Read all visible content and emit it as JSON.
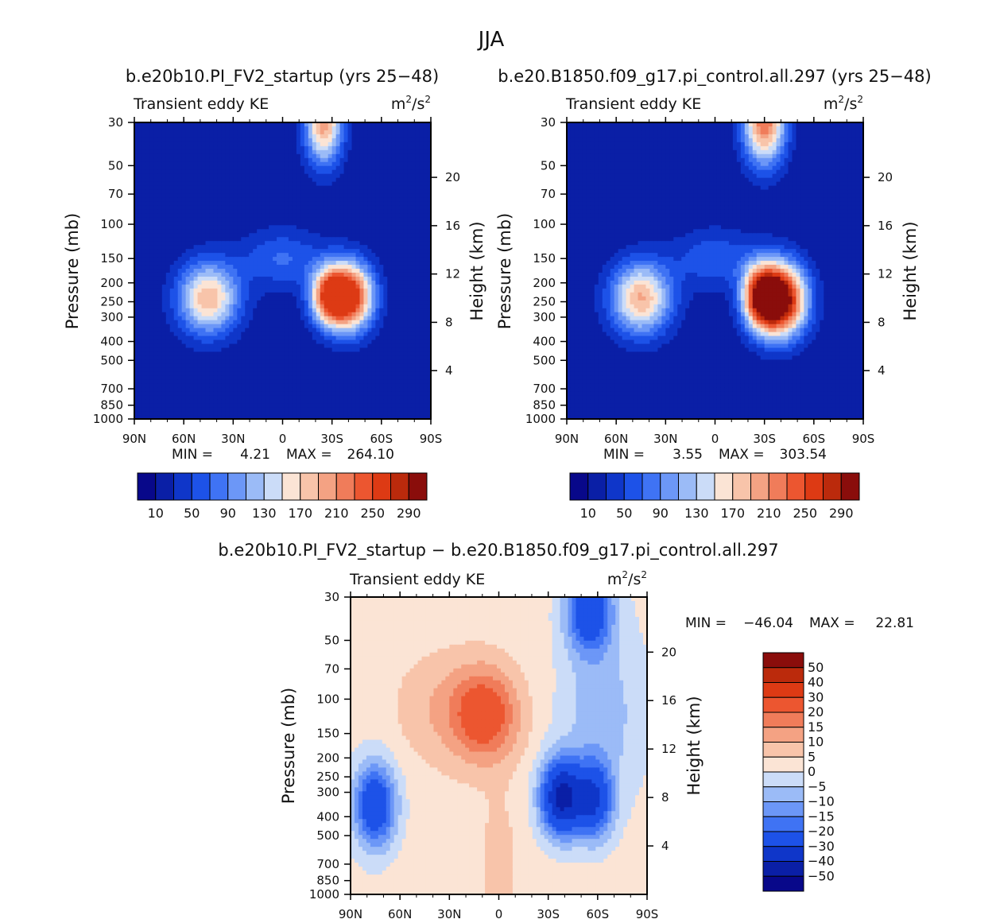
{
  "figure_title": "JJA",
  "colors": {
    "abs_scale": [
      "#08088a",
      "#0a1fa6",
      "#0f36c9",
      "#1d52e8",
      "#3f73f4",
      "#6c97f7",
      "#9bbbf7",
      "#cbdcf8",
      "#fbe4d5",
      "#f8c4aa",
      "#f4a283",
      "#f07c5a",
      "#ec5630",
      "#dd3a14",
      "#bb2a0c",
      "#8a0d0b"
    ],
    "diff_scale": [
      "#08088a",
      "#0a1fa6",
      "#0f36c9",
      "#1d52e8",
      "#3f73f4",
      "#6c97f7",
      "#9bbbf7",
      "#cbdcf8",
      "#fbe4d5",
      "#f8c4aa",
      "#f4a283",
      "#f07c5a",
      "#ec5630",
      "#dd3a14",
      "#bb2a0c",
      "#8a0d0b"
    ]
  },
  "chart_data": [
    {
      "type": "heatmap",
      "title": "b.e20b10.PI_FV2_startup (yrs 25−48)",
      "left_label": "Transient eddy KE",
      "units_base": "m",
      "units_exp1": "2",
      "units_mid": "/s",
      "units_exp2": "2",
      "xlabel": "",
      "ylabel": "Pressure (mb)",
      "y2label": "Height (km)",
      "xticks": [
        "90N",
        "60N",
        "30N",
        "0",
        "30S",
        "60S",
        "90S"
      ],
      "yticks": [
        "30",
        "50",
        "70",
        "100",
        "150",
        "200",
        "250",
        "300",
        "400",
        "500",
        "700",
        "850",
        "1000"
      ],
      "y2ticks": [
        "20",
        "16",
        "12",
        "8",
        "4"
      ],
      "ylim": [
        1000,
        30
      ],
      "min_label": "MIN =",
      "min_value": "4.21",
      "max_label": "MAX =",
      "max_value": "264.10",
      "min": 4.21,
      "max": 264.1,
      "levels": [
        10,
        30,
        50,
        70,
        90,
        110,
        130,
        150,
        170,
        190,
        210,
        230,
        250,
        270,
        290
      ],
      "colorbar_labels": [
        "10",
        "50",
        "90",
        "130",
        "170",
        "210",
        "250",
        "290"
      ],
      "field": [
        {
          "lat": -15,
          "p": 1000,
          "amp": 0,
          "sx": 1,
          "sy": 1
        },
        {
          "lat": -41,
          "p": 235,
          "amp": 260,
          "sx": 10,
          "sy": 0.28
        },
        {
          "lat": -28,
          "p": 235,
          "amp": 200,
          "sx": 8,
          "sy": 0.24
        },
        {
          "lat": 45,
          "p": 240,
          "amp": 175,
          "sx": 13,
          "sy": 0.3
        },
        {
          "lat": -25,
          "p": 30,
          "amp": 190,
          "sx": 8,
          "sy": 0.35
        },
        {
          "lat": 0,
          "p": 150,
          "amp": 60,
          "sx": 18,
          "sy": 0.25
        }
      ]
    },
    {
      "type": "heatmap",
      "title": "b.e20.B1850.f09_g17.pi_control.all.297 (yrs 25−48)",
      "left_label": "Transient eddy KE",
      "units_base": "m",
      "units_exp1": "2",
      "units_mid": "/s",
      "units_exp2": "2",
      "xlabel": "",
      "ylabel": "Pressure (mb)",
      "y2label": "Height (km)",
      "xticks": [
        "90N",
        "60N",
        "30N",
        "0",
        "30S",
        "60S",
        "90S"
      ],
      "yticks": [
        "30",
        "50",
        "70",
        "100",
        "150",
        "200",
        "250",
        "300",
        "400",
        "500",
        "700",
        "850",
        "1000"
      ],
      "y2ticks": [
        "20",
        "16",
        "12",
        "8",
        "4"
      ],
      "ylim": [
        1000,
        30
      ],
      "min_label": "MIN =",
      "min_value": "3.55",
      "max_label": "MAX =",
      "max_value": "303.54",
      "min": 3.55,
      "max": 303.54,
      "levels": [
        10,
        30,
        50,
        70,
        90,
        110,
        130,
        150,
        170,
        190,
        210,
        230,
        250,
        270,
        290
      ],
      "colorbar_labels": [
        "10",
        "50",
        "90",
        "130",
        "170",
        "210",
        "250",
        "290"
      ],
      "field": [
        {
          "lat": -40,
          "p": 245,
          "amp": 300,
          "sx": 11,
          "sy": 0.3
        },
        {
          "lat": -28,
          "p": 235,
          "amp": 220,
          "sx": 8,
          "sy": 0.26
        },
        {
          "lat": 45,
          "p": 240,
          "amp": 180,
          "sx": 13,
          "sy": 0.3
        },
        {
          "lat": -30,
          "p": 30,
          "amp": 215,
          "sx": 9,
          "sy": 0.35
        },
        {
          "lat": 0,
          "p": 150,
          "amp": 55,
          "sx": 18,
          "sy": 0.25
        }
      ]
    },
    {
      "type": "heatmap",
      "title": "b.e20b10.PI_FV2_startup − b.e20.B1850.f09_g17.pi_control.all.297",
      "left_label": "Transient eddy KE",
      "units_base": "m",
      "units_exp1": "2",
      "units_mid": "/s",
      "units_exp2": "2",
      "xlabel": "",
      "ylabel": "Pressure (mb)",
      "y2label": "Height (km)",
      "xticks": [
        "90N",
        "60N",
        "30N",
        "0",
        "30S",
        "60S",
        "90S"
      ],
      "yticks": [
        "30",
        "50",
        "70",
        "100",
        "150",
        "200",
        "250",
        "300",
        "400",
        "500",
        "700",
        "850",
        "1000"
      ],
      "y2ticks": [
        "20",
        "16",
        "12",
        "8",
        "4"
      ],
      "ylim": [
        1000,
        30
      ],
      "min_label": "MIN =",
      "min_value": "−46.04",
      "max_label": "MAX =",
      "max_value": "22.81",
      "min": -46.04,
      "max": 22.81,
      "levels": [
        -50,
        -40,
        -30,
        -20,
        -15,
        -10,
        -5,
        0,
        5,
        10,
        15,
        20,
        30,
        40,
        50
      ],
      "colorbar_labels": [
        "50",
        "40",
        "30",
        "20",
        "15",
        "10",
        "5",
        "0",
        "−5",
        "−10",
        "−15",
        "−20",
        "−30",
        "−40",
        "−50"
      ],
      "field": [
        {
          "lat": 0,
          "p": 1000,
          "amp": 3,
          "sx": 100,
          "sy": 5
        },
        {
          "lat": 8,
          "p": 120,
          "amp": 22,
          "sx": 14,
          "sy": 0.38
        },
        {
          "lat": 35,
          "p": 110,
          "amp": 7,
          "sx": 20,
          "sy": 0.45
        },
        {
          "lat": -38,
          "p": 320,
          "amp": -44,
          "sx": 9,
          "sy": 0.32
        },
        {
          "lat": -58,
          "p": 330,
          "amp": -30,
          "sx": 8,
          "sy": 0.32
        },
        {
          "lat": 75,
          "p": 350,
          "amp": -32,
          "sx": 9,
          "sy": 0.35
        },
        {
          "lat": -55,
          "p": 35,
          "amp": -30,
          "sx": 10,
          "sy": 0.35
        },
        {
          "lat": -62,
          "p": 120,
          "amp": -10,
          "sx": 18,
          "sy": 0.7
        },
        {
          "lat": 0,
          "p": 700,
          "amp": 4,
          "sx": 8,
          "sy": 0.6
        }
      ]
    }
  ]
}
